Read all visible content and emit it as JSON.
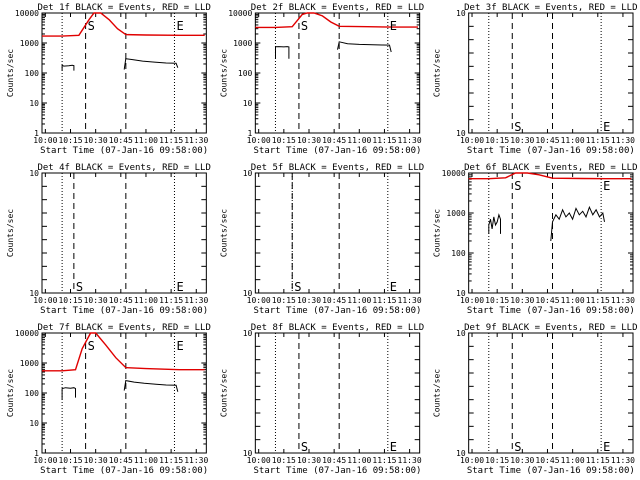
{
  "page": {
    "x_axis_label": "Start Time (07-Jan-16 09:58:00)",
    "y_axis_label": "Counts/sec"
  },
  "legend": {
    "black": "Events",
    "red": "LLD"
  },
  "x_ticks": [
    "10:00",
    "10:15",
    "10:30",
    "10:45",
    "11:00",
    "11:15",
    "11:30"
  ],
  "colors": {
    "events": "#000000",
    "lld": "#e00000",
    "axes": "#000000"
  },
  "chart_data": [
    {
      "id": "1f",
      "type": "line",
      "title": "Det 1f BLACK = Events, RED = LLD",
      "yscale": "log",
      "ylim": [
        1,
        10000
      ],
      "y_ticks": [
        "1",
        "10",
        "100",
        "1000",
        "10000"
      ],
      "markers": {
        "S": "10:24",
        "E": "11:17",
        "S_label": "S",
        "E_label": "E",
        "dash": [
          "10:24",
          "10:48"
        ],
        "dot": [
          "10:10",
          "11:17"
        ]
      },
      "series": [
        {
          "name": "LLD",
          "color": "#e00000",
          "segments": [
            [
              [
                "09:58",
                1700
              ],
              [
                "10:10",
                1700
              ],
              [
                "10:20",
                1800
              ],
              [
                "10:26",
                6000
              ],
              [
                "10:29",
                12000
              ],
              [
                "10:33",
                12000
              ],
              [
                "10:38",
                6000
              ],
              [
                "10:43",
                3000
              ],
              [
                "10:48",
                1900
              ],
              [
                "11:00",
                1850
              ],
              [
                "11:20",
                1800
              ],
              [
                "11:35",
                1800
              ]
            ]
          ]
        },
        {
          "name": "Events",
          "color": "#000000",
          "segments": [
            [
              [
                "10:10",
                120
              ],
              [
                "10:10",
                180
              ],
              [
                "10:11",
                170
              ],
              [
                "10:14",
                175
              ],
              [
                "10:16",
                180
              ],
              [
                "10:17",
                175
              ],
              [
                "10:17",
                120
              ]
            ],
            [
              [
                "10:47",
                130
              ],
              [
                "10:48",
                300
              ],
              [
                "10:52",
                280
              ],
              [
                "10:58",
                250
              ],
              [
                "11:05",
                230
              ],
              [
                "11:12",
                215
              ],
              [
                "11:18",
                210
              ],
              [
                "11:19",
                150
              ]
            ]
          ]
        }
      ]
    },
    {
      "id": "2f",
      "type": "line",
      "title": "Det 2f BLACK = Events, RED = LLD",
      "yscale": "log",
      "ylim": [
        1,
        10000
      ],
      "y_ticks": [
        "1",
        "10",
        "100",
        "1000",
        "10000"
      ],
      "markers": {
        "S": "10:24",
        "E": "11:17",
        "S_label": "S",
        "E_label": "E",
        "dash": [
          "10:24",
          "10:48"
        ],
        "dot": [
          "10:10",
          "11:17"
        ]
      },
      "series": [
        {
          "name": "LLD",
          "color": "#e00000",
          "segments": [
            [
              [
                "09:58",
                3300
              ],
              [
                "10:10",
                3300
              ],
              [
                "10:20",
                3500
              ],
              [
                "10:26",
                9000
              ],
              [
                "10:29",
                13000
              ],
              [
                "10:33",
                13000
              ],
              [
                "10:38",
                8000
              ],
              [
                "10:43",
                5000
              ],
              [
                "10:48",
                3600
              ],
              [
                "11:05",
                3500
              ],
              [
                "11:20",
                3400
              ],
              [
                "11:35",
                3400
              ]
            ]
          ]
        },
        {
          "name": "Events",
          "color": "#000000",
          "segments": [
            [
              [
                "10:10",
                300
              ],
              [
                "10:10",
                750
              ],
              [
                "10:12",
                760
              ],
              [
                "10:15",
                740
              ],
              [
                "10:17",
                760
              ],
              [
                "10:18",
                740
              ],
              [
                "10:18",
                300
              ]
            ],
            [
              [
                "10:47",
                600
              ],
              [
                "10:48",
                1100
              ],
              [
                "10:53",
                950
              ],
              [
                "11:00",
                900
              ],
              [
                "11:08",
                870
              ],
              [
                "11:14",
                860
              ],
              [
                "11:18",
                850
              ],
              [
                "11:19",
                500
              ]
            ]
          ]
        }
      ]
    },
    {
      "id": "3f",
      "type": "line",
      "title": "Det 3f BLACK = Events, RED = LLD",
      "yscale": "log",
      "ylim": [
        1e-09,
        1e-08
      ],
      "y_ticks": [
        "10<sup>-9</sup>",
        "",
        "",
        "",
        "",
        "",
        "",
        "",
        "",
        "10<sup>-8</sup>"
      ],
      "markers": {
        "S": "10:24",
        "E": "11:17",
        "S_label": "S",
        "E_label": "E",
        "dash": [
          "10:24",
          "10:48"
        ],
        "dot": [
          "10:10",
          "11:17"
        ]
      },
      "series": []
    },
    {
      "id": "4f",
      "type": "line",
      "title": "Det 4f BLACK = Events, RED = LLD",
      "yscale": "log",
      "ylim": [
        1e-09,
        1e-08
      ],
      "y_ticks": [
        "10<sup>-9</sup>",
        "",
        "",
        "",
        "",
        "",
        "",
        "",
        "",
        "10<sup>-8</sup>"
      ],
      "markers": {
        "S": "10:17",
        "E": "11:17",
        "S_label": "S",
        "E_label": "E",
        "dash": [
          "10:17",
          "10:48"
        ],
        "dot": [
          "10:10",
          "11:17"
        ]
      },
      "series": []
    },
    {
      "id": "5f",
      "type": "line",
      "title": "Det 5f BLACK = Events, RED = LLD",
      "yscale": "log",
      "ylim": [
        1e-09,
        1e-08
      ],
      "y_ticks": [
        "10<sup>-9</sup>",
        "",
        "",
        "",
        "",
        "",
        "",
        "",
        "",
        "10<sup>-8</sup>"
      ],
      "markers": {
        "S": "10:20",
        "E": "11:17",
        "S_label": "S",
        "E_label": "E",
        "dash": [
          "10:20",
          "10:48"
        ],
        "dot": [
          "10:20",
          "11:17"
        ]
      },
      "series": []
    },
    {
      "id": "6f",
      "type": "line",
      "title": "Det 6f BLACK = Events, RED = LLD",
      "yscale": "log",
      "ylim": [
        10,
        10000
      ],
      "y_ticks": [
        "10",
        "100",
        "1000",
        "10000"
      ],
      "markers": {
        "S": "10:24",
        "E": "11:17",
        "S_label": "S",
        "E_label": "E",
        "dash": [
          "10:24",
          "10:48"
        ],
        "dot": [
          "10:10",
          "11:17"
        ]
      },
      "series": [
        {
          "name": "LLD",
          "color": "#e00000",
          "segments": [
            [
              [
                "09:58",
                7200
              ],
              [
                "10:10",
                7200
              ],
              [
                "10:20",
                7600
              ],
              [
                "10:26",
                11000
              ],
              [
                "10:33",
                11000
              ],
              [
                "10:40",
                9000
              ],
              [
                "10:45",
                8000
              ],
              [
                "10:48",
                7400
              ],
              [
                "11:05",
                7300
              ],
              [
                "11:20",
                7200
              ],
              [
                "11:35",
                7200
              ]
            ]
          ]
        },
        {
          "name": "Events",
          "color": "#000000",
          "segments": [
            [
              [
                "10:10",
                300
              ],
              [
                "10:10",
                500
              ],
              [
                "10:11",
                700
              ],
              [
                "10:12",
                400
              ],
              [
                "10:13",
                800
              ],
              [
                "10:14",
                500
              ],
              [
                "10:15",
                600
              ],
              [
                "10:16",
                900
              ],
              [
                "10:17",
                700
              ],
              [
                "10:17",
                300
              ]
            ],
            [
              [
                "10:47",
                200
              ],
              [
                "10:48",
                600
              ],
              [
                "10:50",
                900
              ],
              [
                "10:52",
                700
              ],
              [
                "10:54",
                1200
              ],
              [
                "10:56",
                800
              ],
              [
                "10:58",
                1000
              ],
              [
                "11:00",
                700
              ],
              [
                "11:02",
                1300
              ],
              [
                "11:04",
                900
              ],
              [
                "11:06",
                1100
              ],
              [
                "11:08",
                800
              ],
              [
                "11:10",
                1400
              ],
              [
                "11:12",
                900
              ],
              [
                "11:14",
                1200
              ],
              [
                "11:16",
                800
              ],
              [
                "11:18",
                1000
              ],
              [
                "11:19",
                600
              ]
            ]
          ]
        }
      ]
    },
    {
      "id": "7f",
      "type": "line",
      "title": "Det 7f BLACK = Events, RED = LLD",
      "yscale": "log",
      "ylim": [
        1,
        10000
      ],
      "y_ticks": [
        "1",
        "10",
        "100",
        "1000",
        "10000"
      ],
      "markers": {
        "S": "10:24",
        "E": "11:17",
        "S_label": "S",
        "E_label": "E",
        "dash": [
          "10:24",
          "10:48"
        ],
        "dot": [
          "10:10",
          "11:17"
        ]
      },
      "series": [
        {
          "name": "LLD",
          "color": "#e00000",
          "segments": [
            [
              [
                "09:58",
                550
              ],
              [
                "10:10",
                550
              ],
              [
                "10:18",
                600
              ],
              [
                "10:22",
                3000
              ],
              [
                "10:27",
                12000
              ],
              [
                "10:30",
                12000
              ],
              [
                "10:36",
                4000
              ],
              [
                "10:42",
                1500
              ],
              [
                "10:48",
                700
              ],
              [
                "11:00",
                650
              ],
              [
                "11:20",
                600
              ],
              [
                "11:35",
                600
              ]
            ]
          ]
        },
        {
          "name": "Events",
          "color": "#000000",
          "segments": [
            [
              [
                "10:10",
                60
              ],
              [
                "10:10",
                140
              ],
              [
                "10:12",
                150
              ],
              [
                "10:15",
                145
              ],
              [
                "10:17",
                150
              ],
              [
                "10:18",
                140
              ],
              [
                "10:18",
                70
              ]
            ],
            [
              [
                "10:47",
                120
              ],
              [
                "10:48",
                260
              ],
              [
                "10:53",
                230
              ],
              [
                "10:59",
                210
              ],
              [
                "11:06",
                195
              ],
              [
                "11:12",
                185
              ],
              [
                "11:18",
                180
              ],
              [
                "11:19",
                110
              ]
            ]
          ]
        }
      ]
    },
    {
      "id": "8f",
      "type": "line",
      "title": "Det 8f BLACK = Events, RED = LLD",
      "yscale": "log",
      "ylim": [
        1e-09,
        1e-08
      ],
      "y_ticks": [
        "10<sup>-9</sup>",
        "",
        "",
        "",
        "",
        "",
        "",
        "",
        "",
        "10<sup>-8</sup>"
      ],
      "markers": {
        "S": "10:24",
        "E": "11:17",
        "S_label": "S",
        "E_label": "E",
        "dash": [
          "10:24",
          "10:48"
        ],
        "dot": [
          "10:10",
          "11:17"
        ]
      },
      "series": []
    },
    {
      "id": "9f",
      "type": "line",
      "title": "Det 9f BLACK = Events, RED = LLD",
      "yscale": "log",
      "ylim": [
        1e-09,
        1e-08
      ],
      "y_ticks": [
        "10<sup>-9</sup>",
        "",
        "",
        "",
        "",
        "",
        "",
        "",
        "",
        "10<sup>-8</sup>"
      ],
      "markers": {
        "S": "10:24",
        "E": "11:17",
        "S_label": "S",
        "E_label": "E",
        "dash": [
          "10:24",
          "10:48"
        ],
        "dot": [
          "10:10",
          "11:17"
        ]
      },
      "series": []
    }
  ]
}
